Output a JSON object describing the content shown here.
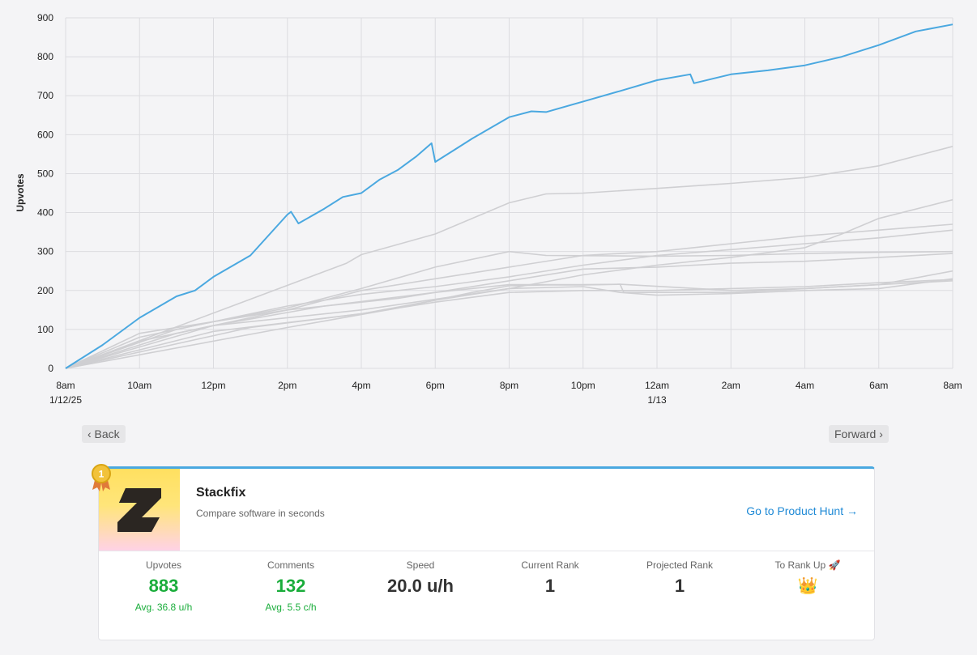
{
  "chart_data": {
    "type": "line",
    "ylabel": "Upvotes",
    "ylim": [
      0,
      900
    ],
    "yticks": [
      "0",
      "100",
      "200",
      "300",
      "400",
      "500",
      "600",
      "700",
      "800",
      "900"
    ],
    "xlim": [
      0,
      24
    ],
    "x_unit": "hours after 1/12/25 8am",
    "xticks": [
      {
        "label": "8am",
        "sublabel": "1/12/25",
        "x": 0
      },
      {
        "label": "10am",
        "sublabel": "",
        "x": 2
      },
      {
        "label": "12pm",
        "sublabel": "",
        "x": 4
      },
      {
        "label": "2pm",
        "sublabel": "",
        "x": 6
      },
      {
        "label": "4pm",
        "sublabel": "",
        "x": 8
      },
      {
        "label": "6pm",
        "sublabel": "",
        "x": 10
      },
      {
        "label": "8pm",
        "sublabel": "",
        "x": 12
      },
      {
        "label": "10pm",
        "sublabel": "",
        "x": 14
      },
      {
        "label": "12am",
        "sublabel": "1/13",
        "x": 16
      },
      {
        "label": "2am",
        "sublabel": "",
        "x": 18
      },
      {
        "label": "4am",
        "sublabel": "",
        "x": 20
      },
      {
        "label": "6am",
        "sublabel": "",
        "x": 22
      },
      {
        "label": "8am",
        "sublabel": "",
        "x": 24
      }
    ],
    "grid": true,
    "legend": "none",
    "highlight_color": "#4aa8e0",
    "other_color": "#cfcfd2",
    "series": [
      {
        "highlight": true,
        "points": [
          [
            0,
            0
          ],
          [
            1,
            60
          ],
          [
            2,
            130
          ],
          [
            3,
            185
          ],
          [
            3.5,
            200
          ],
          [
            4,
            235
          ],
          [
            5,
            290
          ],
          [
            6,
            395
          ],
          [
            6.1,
            402
          ],
          [
            6.3,
            372
          ],
          [
            7,
            410
          ],
          [
            7.5,
            440
          ],
          [
            8,
            450
          ],
          [
            8.5,
            485
          ],
          [
            9,
            510
          ],
          [
            9.5,
            545
          ],
          [
            9.9,
            578
          ],
          [
            10,
            530
          ],
          [
            10.5,
            560
          ],
          [
            11,
            590
          ],
          [
            12,
            645
          ],
          [
            12.6,
            660
          ],
          [
            13,
            658
          ],
          [
            14,
            685
          ],
          [
            15,
            712
          ],
          [
            16,
            740
          ],
          [
            16.9,
            755
          ],
          [
            17,
            732
          ],
          [
            18,
            755
          ],
          [
            19,
            765
          ],
          [
            20,
            778
          ],
          [
            21,
            800
          ],
          [
            22,
            830
          ],
          [
            23,
            865
          ],
          [
            24,
            883
          ]
        ]
      },
      {
        "highlight": false,
        "points": [
          [
            0,
            0
          ],
          [
            7.6,
            270
          ],
          [
            8,
            292
          ],
          [
            10,
            345
          ],
          [
            12,
            425
          ],
          [
            13,
            448
          ],
          [
            14,
            450
          ],
          [
            16,
            462
          ],
          [
            18,
            475
          ],
          [
            20,
            490
          ],
          [
            22,
            520
          ],
          [
            24,
            570
          ]
        ]
      },
      {
        "highlight": false,
        "points": [
          [
            0,
            0
          ],
          [
            4,
            110
          ],
          [
            8,
            150
          ],
          [
            12,
            205
          ],
          [
            14,
            240
          ],
          [
            16,
            265
          ],
          [
            18,
            285
          ],
          [
            20,
            310
          ],
          [
            21,
            345
          ],
          [
            22,
            385
          ],
          [
            24,
            433
          ]
        ]
      },
      {
        "highlight": false,
        "points": [
          [
            0,
            0
          ],
          [
            2,
            80
          ],
          [
            4,
            120
          ],
          [
            6,
            150
          ],
          [
            8,
            200
          ],
          [
            10,
            230
          ],
          [
            12,
            260
          ],
          [
            14,
            290
          ],
          [
            16,
            300
          ],
          [
            18,
            320
          ],
          [
            20,
            340
          ],
          [
            22,
            355
          ],
          [
            24,
            370
          ]
        ]
      },
      {
        "highlight": false,
        "points": [
          [
            0,
            0
          ],
          [
            3,
            100
          ],
          [
            6,
            160
          ],
          [
            8,
            190
          ],
          [
            10,
            210
          ],
          [
            12,
            235
          ],
          [
            14,
            265
          ],
          [
            16,
            290
          ],
          [
            18,
            305
          ],
          [
            20,
            320
          ],
          [
            22,
            335
          ],
          [
            24,
            355
          ]
        ]
      },
      {
        "highlight": false,
        "points": [
          [
            0,
            0
          ],
          [
            2,
            90
          ],
          [
            4,
            120
          ],
          [
            6,
            155
          ],
          [
            8,
            205
          ],
          [
            10,
            260
          ],
          [
            12,
            300
          ],
          [
            13,
            290
          ],
          [
            16,
            288
          ],
          [
            18,
            290
          ],
          [
            20,
            295
          ],
          [
            22,
            298
          ],
          [
            24,
            300
          ]
        ]
      },
      {
        "highlight": false,
        "points": [
          [
            0,
            0
          ],
          [
            3,
            90
          ],
          [
            6,
            150
          ],
          [
            9,
            180
          ],
          [
            12,
            225
          ],
          [
            14,
            255
          ],
          [
            16,
            260
          ],
          [
            18,
            270
          ],
          [
            20,
            275
          ],
          [
            22,
            285
          ],
          [
            24,
            295
          ]
        ]
      },
      {
        "highlight": false,
        "points": [
          [
            0,
            0
          ],
          [
            2,
            70
          ],
          [
            4,
            110
          ],
          [
            7,
            160
          ],
          [
            10,
            195
          ],
          [
            12,
            215
          ],
          [
            14,
            215
          ],
          [
            15,
            216
          ],
          [
            15.1,
            195
          ],
          [
            18,
            195
          ],
          [
            20,
            205
          ],
          [
            22,
            215
          ],
          [
            24,
            250
          ]
        ]
      },
      {
        "highlight": false,
        "points": [
          [
            0,
            0
          ],
          [
            4,
            95
          ],
          [
            8,
            140
          ],
          [
            10,
            170
          ],
          [
            12,
            195
          ],
          [
            14,
            200
          ],
          [
            16,
            200
          ],
          [
            18,
            205
          ],
          [
            20,
            210
          ],
          [
            22,
            220
          ],
          [
            24,
            228
          ]
        ]
      },
      {
        "highlight": false,
        "points": [
          [
            0,
            0
          ],
          [
            5,
            105
          ],
          [
            8,
            140
          ],
          [
            10,
            175
          ],
          [
            12,
            205
          ],
          [
            14,
            210
          ],
          [
            15,
            195
          ],
          [
            16,
            188
          ],
          [
            18,
            192
          ],
          [
            20,
            200
          ],
          [
            22,
            205
          ],
          [
            24,
            230
          ]
        ]
      },
      {
        "highlight": false,
        "points": [
          [
            0,
            0
          ],
          [
            6,
            105
          ],
          [
            9,
            155
          ],
          [
            11,
            195
          ],
          [
            12,
            212
          ],
          [
            13,
            214
          ],
          [
            14,
            214
          ],
          [
            15,
            216
          ],
          [
            18,
            200
          ],
          [
            20,
            205
          ],
          [
            22,
            215
          ],
          [
            24,
            225
          ]
        ]
      }
    ]
  },
  "nav": {
    "back_label": "‹ Back",
    "forward_label": "Forward ›"
  },
  "product": {
    "rank_badge": "1",
    "name": "Stackfix",
    "tagline": "Compare software in seconds",
    "link_label": "Go to Product Hunt →"
  },
  "stats": {
    "upvotes": {
      "label": "Upvotes",
      "value": "883",
      "sub": "Avg. 36.8 u/h"
    },
    "comments": {
      "label": "Comments",
      "value": "132",
      "sub": "Avg. 5.5 c/h"
    },
    "speed": {
      "label": "Speed",
      "value": "20.0 u/h"
    },
    "current_rank": {
      "label": "Current Rank",
      "value": "1"
    },
    "projected_rank": {
      "label": "Projected Rank",
      "value": "1"
    },
    "to_rank_up": {
      "label": "To Rank Up 🚀",
      "value": "👑"
    }
  }
}
